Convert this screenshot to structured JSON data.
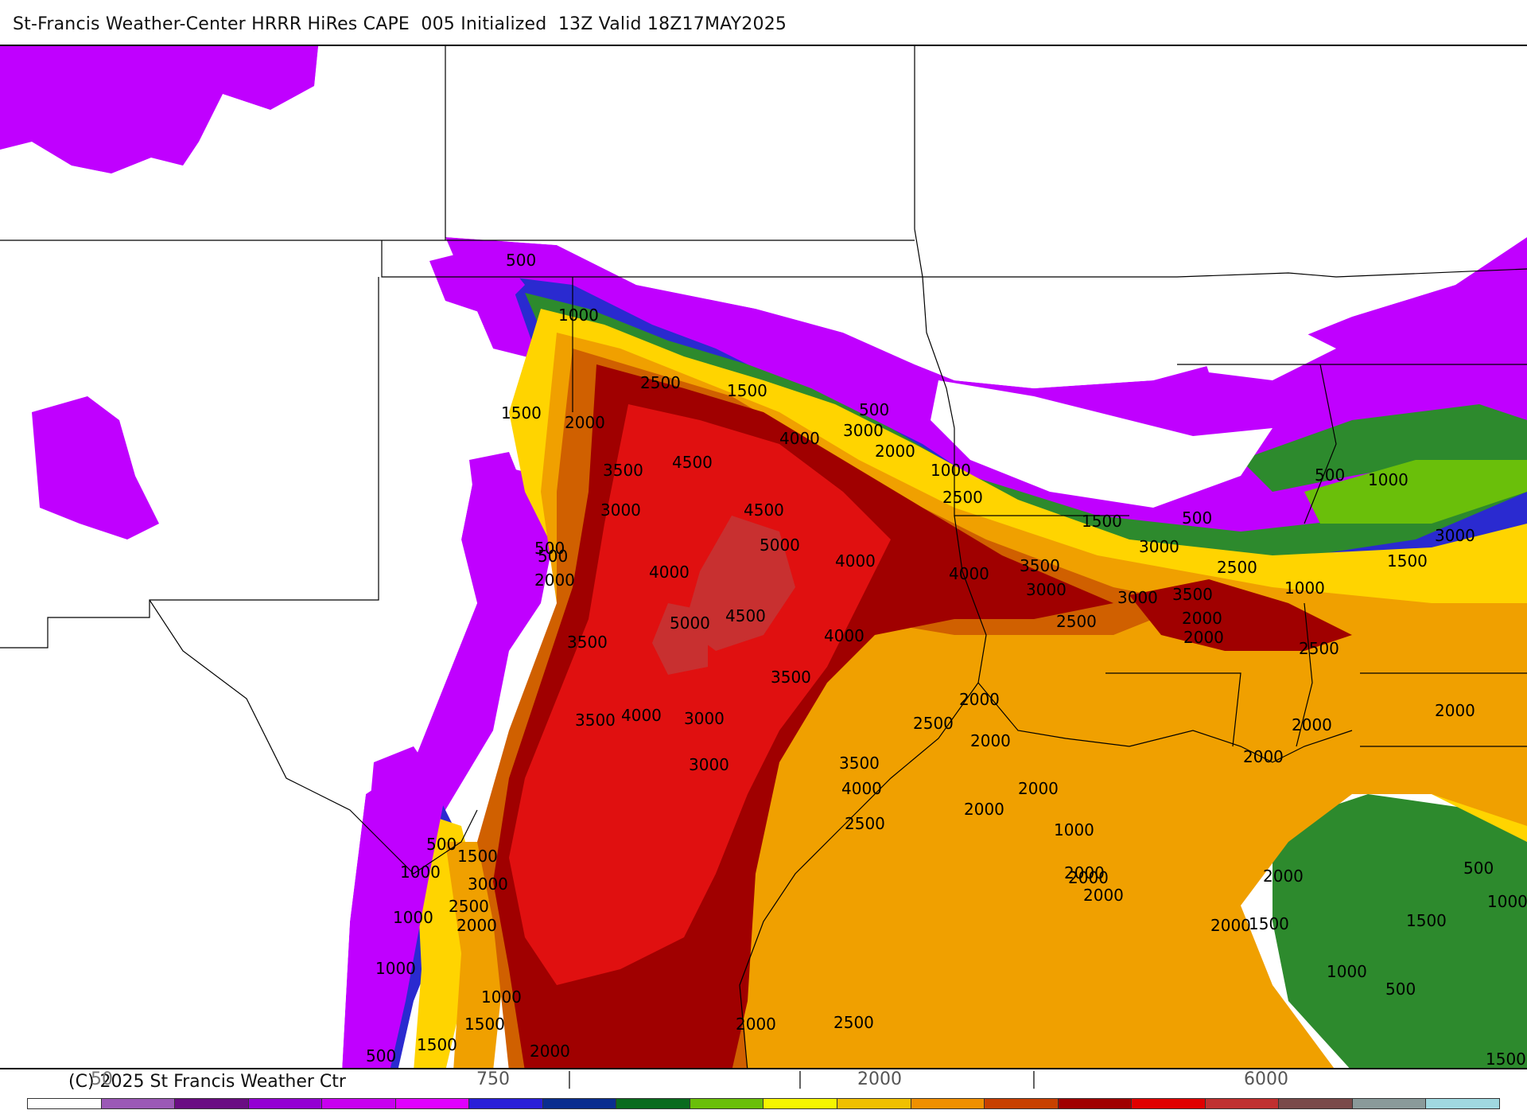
{
  "header": {
    "title": "St-Francis Weather-Center HRRR HiRes CAPE  005 Initialized  13Z Valid 18Z17MAY2025"
  },
  "footer": {
    "copyright": "(C) 2025 St Francis Weather Ctr"
  },
  "colorbar": {
    "ticks": [
      "50",
      "750",
      "|",
      "|",
      "2000",
      "|",
      "6000"
    ],
    "colors": [
      "#ffffff",
      "#9b59b6",
      "#6a0d83",
      "#9400d3",
      "#c800f0",
      "#e000ff",
      "#2a1fd8",
      "#0a2d8f",
      "#0a6b1e",
      "#6abf0a",
      "#f5f500",
      "#f0c000",
      "#f09000",
      "#c84000",
      "#a00000",
      "#e00000",
      "#c03030",
      "#7a4a4a",
      "#8a9a9a",
      "#a0d8e0"
    ]
  },
  "legend_colors": {
    "c500": "#c000ff",
    "c1000": "#2a2ad0",
    "c1500": "#2d8a2d",
    "c2000": "#ffd400",
    "c2500": "#f0a000",
    "c3000": "#d06000",
    "c3500": "#a00000",
    "c4000": "#e01010",
    "c5000": "#c83030"
  },
  "map": {
    "contour_labels": [
      "500",
      "1000",
      "2500",
      "1500",
      "500",
      "1500",
      "2000",
      "3000",
      "2000",
      "3500",
      "4000",
      "4500",
      "1000",
      "3000",
      "4500",
      "2500",
      "500",
      "5000",
      "4000",
      "4000",
      "1500",
      "500",
      "3000",
      "2000",
      "2500",
      "3500",
      "4000",
      "3000",
      "5000",
      "4500",
      "2500",
      "3500",
      "3500",
      "4000",
      "2000",
      "2000",
      "4000",
      "3000",
      "3500",
      "500",
      "1000",
      "3000",
      "2000",
      "2500",
      "500",
      "1000",
      "1500",
      "3000",
      "3500",
      "3000",
      "2500",
      "2000",
      "2000",
      "2000",
      "2000",
      "2000",
      "2000",
      "1000",
      "3500",
      "4000",
      "1500",
      "2500",
      "2000",
      "3000",
      "2000",
      "2000",
      "2000",
      "500",
      "1000",
      "1000",
      "1500",
      "1000",
      "500",
      "1000",
      "1500",
      "1000",
      "500",
      "1500",
      "1500",
      "1000",
      "2500",
      "2000",
      "2000",
      "2000",
      "2500",
      "1500",
      "2000",
      "1000",
      "500"
    ]
  }
}
